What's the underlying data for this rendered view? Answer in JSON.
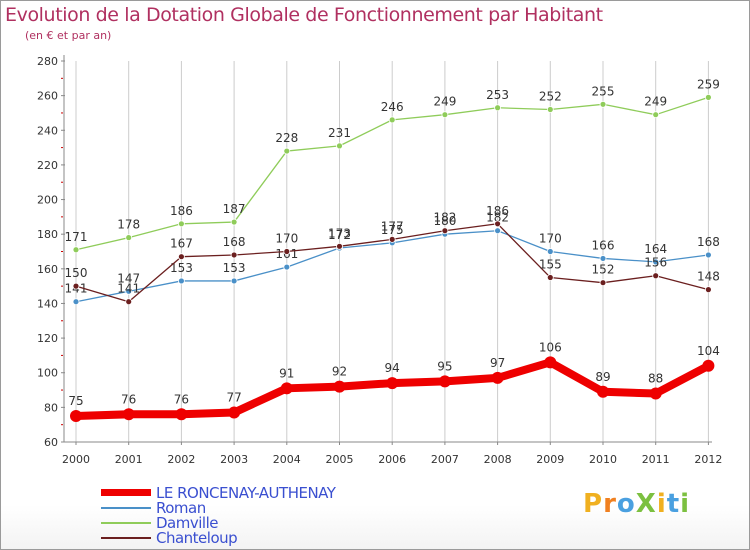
{
  "title": "Evolution de la Dotation Globale de Fonctionnement par Habitant",
  "subtitle": "(en € et par an)",
  "colors": {
    "title": "#b03060",
    "axis": "#888888",
    "grid": "#cccccc",
    "tick_red": "#cc0000"
  },
  "chart_data": {
    "type": "line",
    "x": [
      "2000",
      "2001",
      "2002",
      "2003",
      "2004",
      "2005",
      "2006",
      "2007",
      "2008",
      "2009",
      "2010",
      "2011",
      "2012"
    ],
    "ylim": [
      60,
      280
    ],
    "yticks": [
      "60",
      "80",
      "100",
      "120",
      "140",
      "160",
      "180",
      "200",
      "220",
      "240",
      "260",
      "280"
    ],
    "grid": "vertical",
    "legend_position": "bottom-left",
    "series": [
      {
        "name": "LE RONCENAY-AUTHENAY",
        "color": "#ee0000",
        "values": [
          75,
          76,
          76,
          77,
          91,
          92,
          94,
          95,
          97,
          106,
          89,
          88,
          104
        ]
      },
      {
        "name": "Roman",
        "color": "#4a90c8",
        "values": [
          141,
          147,
          153,
          153,
          161,
          172,
          175,
          180,
          182,
          170,
          166,
          164,
          168
        ]
      },
      {
        "name": "Damville",
        "color": "#8fcc5a",
        "values": [
          171,
          178,
          186,
          187,
          228,
          231,
          246,
          249,
          253,
          252,
          255,
          249,
          259
        ]
      },
      {
        "name": "Chanteloup",
        "color": "#6b1f1f",
        "values": [
          150,
          141,
          167,
          168,
          170,
          173,
          177,
          182,
          186,
          155,
          152,
          156,
          148
        ]
      }
    ]
  },
  "legend": [
    {
      "label": "LE RONCENAY-AUTHENAY",
      "color": "#ee0000"
    },
    {
      "label": "Roman",
      "color": "#4a90c8"
    },
    {
      "label": "Damville",
      "color": "#8fcc5a"
    },
    {
      "label": "Chanteloup",
      "color": "#6b1f1f"
    }
  ],
  "logo": {
    "text": "ProXiti",
    "letter_colors": [
      "#f0b020",
      "#f08020",
      "#4aa0e0",
      "#7cc040",
      "#f0b020",
      "#4aa0e0",
      "#7cc040"
    ]
  }
}
